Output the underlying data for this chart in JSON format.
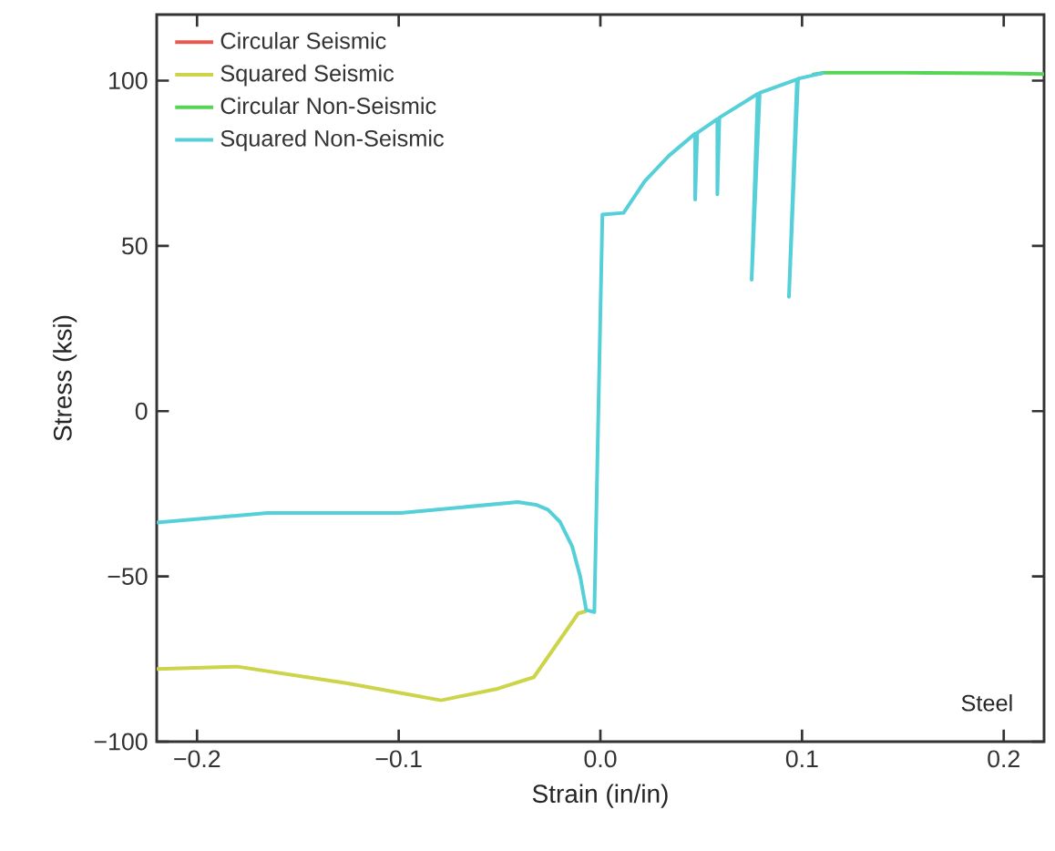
{
  "chart_data": {
    "type": "line",
    "xlabel": "Strain (in/in)",
    "ylabel": "Stress (ksi)",
    "xlim": [
      -0.22,
      0.22
    ],
    "ylim": [
      -100,
      120
    ],
    "xticks": [
      {
        "value": -0.2,
        "label": "−0.2"
      },
      {
        "value": -0.1,
        "label": "−0.1"
      },
      {
        "value": 0,
        "label": "0.0"
      },
      {
        "value": 0.1,
        "label": "0.1"
      },
      {
        "value": 0.2,
        "label": "0.2"
      }
    ],
    "yticks": [
      {
        "value": -100,
        "label": "−100"
      },
      {
        "value": -50,
        "label": "−50"
      },
      0,
      50,
      100
    ],
    "legend": "top left",
    "grid": false,
    "marker": "none",
    "line_style": "solid",
    "annotations": [
      "Steel"
    ],
    "series": [
      {
        "name": "Circular Seismic",
        "color": "#e35b50"
      },
      {
        "name": "Squared Seismic",
        "color": "#cdd44a",
        "x": [
          -0.22,
          -0.18,
          -0.126,
          -0.079,
          -0.051,
          -0.033,
          -0.011,
          -0.007
        ],
        "values": [
          -78,
          -77.3,
          -82.3,
          -87.5,
          -84,
          -80.5,
          -61.2,
          -60.5
        ]
      },
      {
        "name": "Circular Non-Seismic",
        "color": "#55d455",
        "x": [
          0.105,
          0.111,
          0.15,
          0.2,
          0.22
        ],
        "values": [
          101.8,
          102.4,
          102.4,
          102.2,
          102
        ]
      },
      {
        "name": "Squared Non-Seismic",
        "color": "#55d0d8",
        "x": [
          -0.22,
          -0.165,
          -0.099,
          -0.041,
          -0.032,
          -0.026,
          -0.02,
          -0.014,
          -0.01,
          -0.007,
          -0.003,
          0.001,
          0.0115,
          0.022,
          0.034,
          0.047,
          0.047,
          0.048,
          0.058,
          0.058,
          0.059,
          0.078,
          0.075,
          0.079,
          0.0975,
          0.0935,
          0.098,
          0.111
        ],
        "values": [
          -33.7,
          -30.8,
          -30.8,
          -27.5,
          -28.3,
          -29.8,
          -33.5,
          -40.9,
          -50,
          -60.2,
          -60.8,
          59.5,
          60,
          69.6,
          77.3,
          84,
          64,
          84.2,
          88.4,
          65.6,
          88.8,
          96,
          39.8,
          96.3,
          100.4,
          34.6,
          100.6,
          102.4
        ]
      }
    ]
  }
}
